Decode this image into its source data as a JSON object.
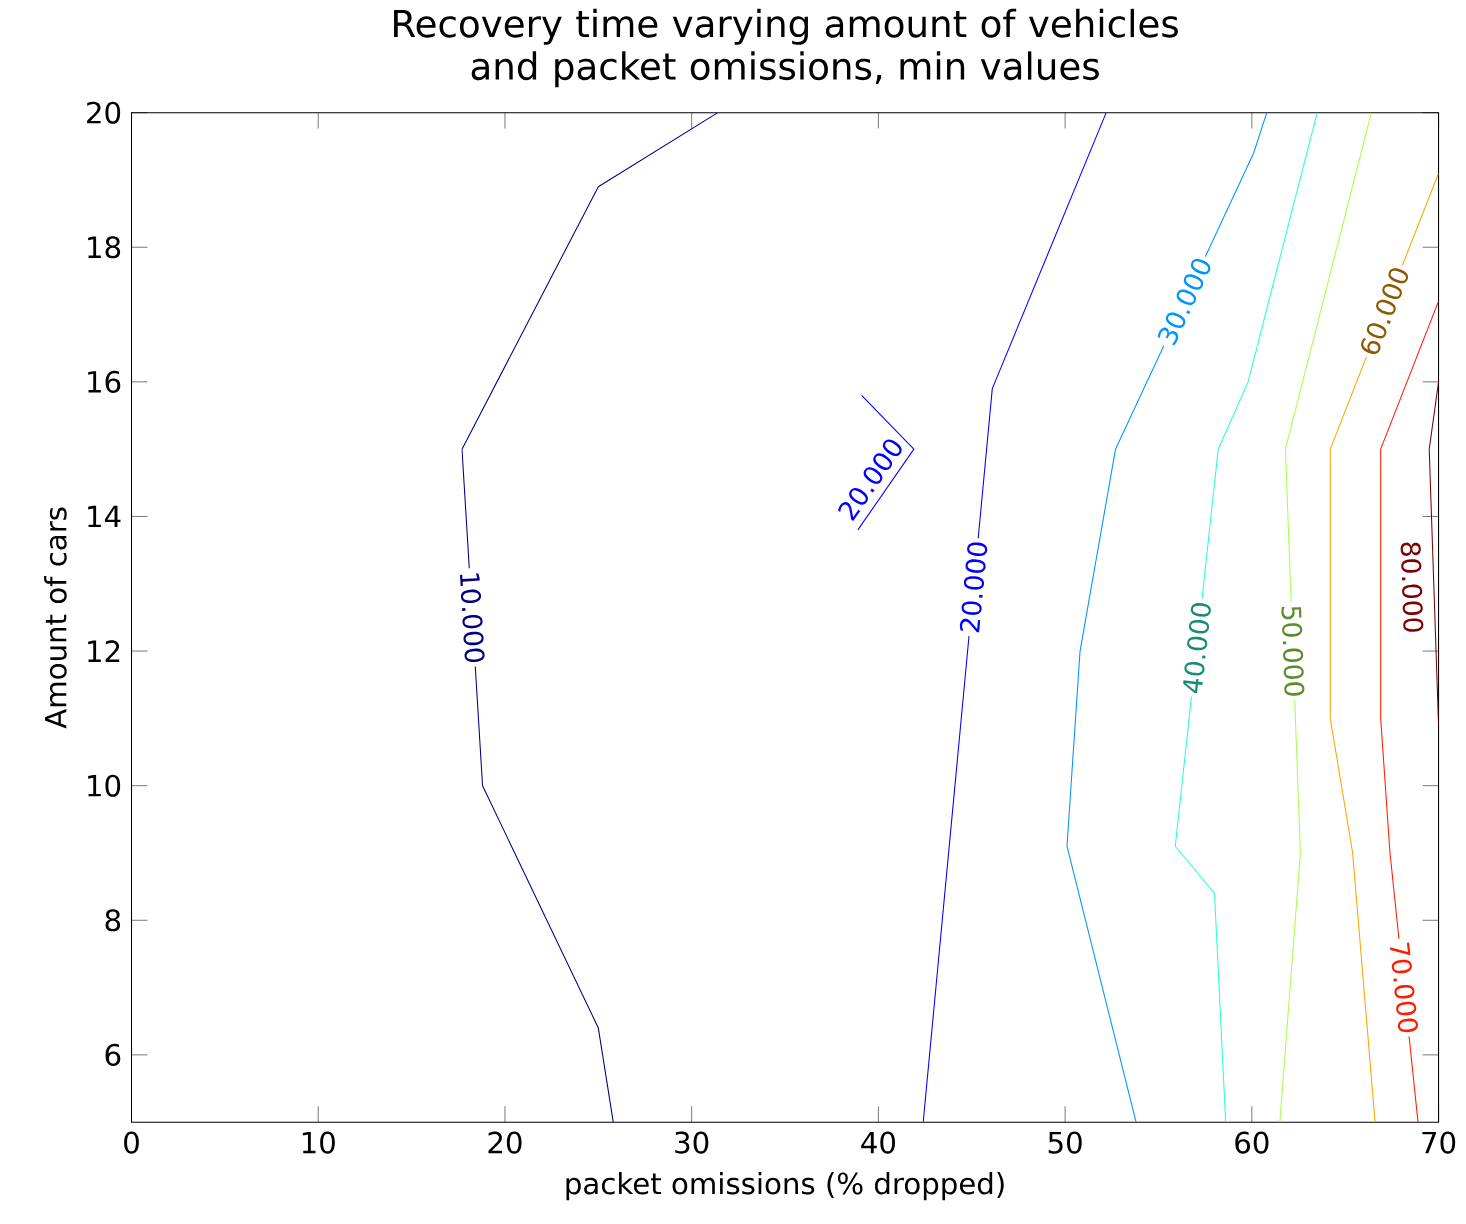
{
  "chart_data": {
    "type": "line",
    "title": "Recovery time varying amount of vehicles and packet omissions, min values",
    "xlabel": "packet omissions (% dropped)",
    "ylabel": "Amount of cars",
    "xlim": [
      0,
      70
    ],
    "ylim": [
      5,
      20
    ],
    "xticks": [
      0,
      10,
      20,
      30,
      40,
      50,
      60,
      70
    ],
    "yticks": [
      6,
      8,
      10,
      12,
      14,
      16,
      18,
      20
    ],
    "grid": false,
    "marker": "none",
    "line_style": "solid",
    "series": [
      {
        "name": "10.000",
        "color": "#000080",
        "x": [
          25.8,
          25.0,
          18.8,
          17.7,
          25.0,
          31.4
        ],
        "values": [
          5,
          6.4,
          10.0,
          15.0,
          18.9,
          20
        ]
      },
      {
        "name": "20.000",
        "color": "#0000ff",
        "x": [
          42.4,
          44.1,
          46.1,
          52.2
        ],
        "values": [
          5,
          10.0,
          15.9,
          20
        ]
      },
      {
        "name": "20.000",
        "color": "#0000ff",
        "x": [
          39.1,
          41.9,
          38.9
        ],
        "values": [
          15.8,
          15.0,
          13.8
        ]
      },
      {
        "name": "30.000",
        "color": "#0094ff",
        "x": [
          53.8,
          50.1,
          50.8,
          52.7,
          60.1,
          60.8
        ],
        "values": [
          5,
          9.1,
          12.0,
          15.0,
          19.4,
          20
        ]
      },
      {
        "name": "40.000",
        "color": "#29ffce",
        "x": [
          58.6,
          58.0,
          55.9,
          58.2,
          59.8,
          63.5
        ],
        "values": [
          5,
          8.4,
          9.1,
          15.0,
          16.0,
          20
        ]
      },
      {
        "name": "50.000",
        "color": "#a8ff4f",
        "x": [
          61.5,
          62.6,
          61.8,
          66.4
        ],
        "values": [
          5,
          9.0,
          15.0,
          20
        ]
      },
      {
        "name": "60.000",
        "color": "#ffa400",
        "x": [
          66.6,
          65.4,
          64.2,
          64.2,
          70
        ],
        "values": [
          5,
          9.0,
          11.0,
          15.0,
          19.1
        ]
      },
      {
        "name": "70.000",
        "color": "#ff1d00",
        "x": [
          68.9,
          67.4,
          66.9,
          66.9,
          70
        ],
        "values": [
          5,
          9.0,
          11.0,
          15.0,
          17.2
        ]
      },
      {
        "name": "80.000",
        "color": "#7f0000",
        "x": [
          70,
          69.5,
          70
        ],
        "values": [
          10.9,
          15.0,
          16.0
        ]
      }
    ]
  }
}
